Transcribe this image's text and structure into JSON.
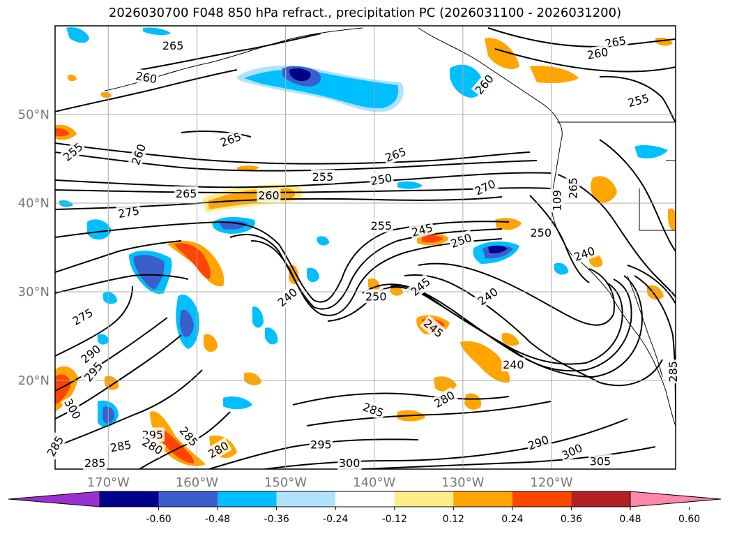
{
  "chart_data": {
    "type": "contour_map",
    "title": "2026030700 F048 850 hPa refract., precipitation PC (2026031100 - 2026031200)",
    "lon_ticks": [
      {
        "lon": -170,
        "label": "170°W"
      },
      {
        "lon": -160,
        "label": "160°W"
      },
      {
        "lon": -150,
        "label": "150°W"
      },
      {
        "lon": -140,
        "label": "140°W"
      },
      {
        "lon": -130,
        "label": "130°W"
      },
      {
        "lon": -120,
        "label": "120°W"
      }
    ],
    "lat_ticks": [
      {
        "lat": 50,
        "label": "50°N"
      },
      {
        "lat": 40,
        "label": "40°N"
      },
      {
        "lat": 30,
        "label": "30°N"
      },
      {
        "lat": 20,
        "label": "20°N"
      }
    ],
    "lon_range": [
      -176,
      -106
    ],
    "lat_range": [
      10,
      60
    ],
    "grid": true,
    "colorbar": {
      "colors": [
        "#9b30d0",
        "#00008b",
        "#3a5fcd",
        "#00bfff",
        "#b0e2ff",
        "#ffffff",
        "#ffec8b",
        "#ffa500",
        "#ff4500",
        "#b22222",
        "#ff88aa"
      ],
      "ticks": [
        "-0.60",
        "-0.48",
        "-0.36",
        "-0.24",
        "-0.12",
        "0.12",
        "0.24",
        "0.36",
        "0.48",
        "0.60"
      ],
      "extend": "both"
    },
    "contour_levels": [
      240,
      245,
      250,
      255,
      260,
      265,
      270,
      275,
      280,
      285,
      290,
      295,
      300,
      305
    ],
    "contour_labels": [
      {
        "text": "265",
        "lon": -162.7,
        "lat": 57.8,
        "rot": 0
      },
      {
        "text": "260",
        "lon": -165.7,
        "lat": 54.2,
        "rot": -10
      },
      {
        "text": "265",
        "lon": -112.8,
        "lat": 58.2,
        "rot": 10
      },
      {
        "text": "260",
        "lon": -114.8,
        "lat": 56.9,
        "rot": 10
      },
      {
        "text": "260",
        "lon": -127.6,
        "lat": 53.4,
        "rot": 50
      },
      {
        "text": "255",
        "lon": -110.2,
        "lat": 51.6,
        "rot": 15
      },
      {
        "text": "265",
        "lon": -156.2,
        "lat": 47.2,
        "rot": 20
      },
      {
        "text": "255",
        "lon": -174.0,
        "lat": 45.8,
        "rot": 40
      },
      {
        "text": "260",
        "lon": -166.6,
        "lat": 45.5,
        "rot": 70
      },
      {
        "text": "265",
        "lon": -137.6,
        "lat": 45.5,
        "rot": 20
      },
      {
        "text": "255",
        "lon": -145.8,
        "lat": 43.0,
        "rot": 0
      },
      {
        "text": "250",
        "lon": -139.2,
        "lat": 42.7,
        "rot": 10
      },
      {
        "text": "270",
        "lon": -127.5,
        "lat": 41.8,
        "rot": 25
      },
      {
        "text": "265",
        "lon": -161.2,
        "lat": 41.1,
        "rot": 0
      },
      {
        "text": "260",
        "lon": -151.9,
        "lat": 40.9,
        "rot": 0
      },
      {
        "text": "275",
        "lon": -167.7,
        "lat": 39.0,
        "rot": 10
      },
      {
        "text": "255",
        "lon": -139.2,
        "lat": 37.5,
        "rot": 0
      },
      {
        "text": "245",
        "lon": -134.6,
        "lat": 37.0,
        "rot": 15
      },
      {
        "text": "250",
        "lon": -130.2,
        "lat": 35.8,
        "rot": 20
      },
      {
        "text": "250",
        "lon": -121.2,
        "lat": 36.7,
        "rot": 0
      },
      {
        "text": "240",
        "lon": -116.3,
        "lat": 34.3,
        "rot": 20
      },
      {
        "text": "240",
        "lon": -149.8,
        "lat": 29.4,
        "rot": 40
      },
      {
        "text": "245",
        "lon": -134.8,
        "lat": 30.6,
        "rot": 40
      },
      {
        "text": "250",
        "lon": -139.8,
        "lat": 29.5,
        "rot": 0
      },
      {
        "text": "240",
        "lon": -127.2,
        "lat": 29.5,
        "rot": 35
      },
      {
        "text": "275",
        "lon": -172.9,
        "lat": 27.2,
        "rot": 30
      },
      {
        "text": "245",
        "lon": -133.3,
        "lat": 25.9,
        "rot": -40
      },
      {
        "text": "240",
        "lon": -124.3,
        "lat": 21.8,
        "rot": 0
      },
      {
        "text": "290",
        "lon": -172.0,
        "lat": 23.0,
        "rot": 40
      },
      {
        "text": "295",
        "lon": -171.7,
        "lat": 21.0,
        "rot": 50
      },
      {
        "text": "300",
        "lon": -174.0,
        "lat": 16.8,
        "rot": -60
      },
      {
        "text": "280",
        "lon": -132.1,
        "lat": 17.9,
        "rot": 30
      },
      {
        "text": "285",
        "lon": -140.1,
        "lat": 16.7,
        "rot": -20
      },
      {
        "text": "285",
        "lon": -168.6,
        "lat": 12.6,
        "rot": 10
      },
      {
        "text": "295",
        "lon": -165.0,
        "lat": 13.9,
        "rot": 0
      },
      {
        "text": "280",
        "lon": -165.0,
        "lat": 12.6,
        "rot": -30
      },
      {
        "text": "285",
        "lon": -160.9,
        "lat": 13.7,
        "rot": -50
      },
      {
        "text": "280",
        "lon": -157.6,
        "lat": 12.2,
        "rot": 30
      },
      {
        "text": "285",
        "lon": -176.0,
        "lat": 12.6,
        "rot": 60
      },
      {
        "text": "285",
        "lon": -171.5,
        "lat": 10.7,
        "rot": 0
      },
      {
        "text": "295",
        "lon": -146.0,
        "lat": 12.8,
        "rot": 0
      },
      {
        "text": "300",
        "lon": -142.8,
        "lat": 10.7,
        "rot": 0
      },
      {
        "text": "290",
        "lon": -121.5,
        "lat": 13.0,
        "rot": 20
      },
      {
        "text": "300",
        "lon": -117.7,
        "lat": 12.0,
        "rot": 25
      },
      {
        "text": "305",
        "lon": -114.5,
        "lat": 10.9,
        "rot": 0
      },
      {
        "text": "109",
        "lon": -119.4,
        "lat": 40.3,
        "rot": 90
      },
      {
        "text": "265",
        "lon": -117.6,
        "lat": 41.7,
        "rot": 90
      },
      {
        "text": "285",
        "lon": -106.3,
        "lat": 21.0,
        "rot": 90
      }
    ]
  }
}
